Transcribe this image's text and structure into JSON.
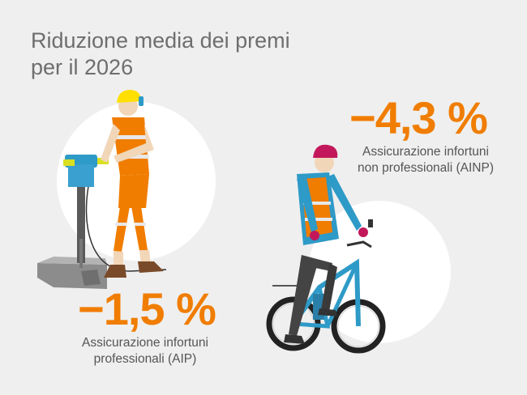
{
  "title": {
    "line1": "Riduzione media dei premi",
    "line2": "per il 2026"
  },
  "stats": {
    "ainp": {
      "value": "−4,3 %",
      "label_line1": "Assicurazione infortuni",
      "label_line2": "non professionali (AINP)"
    },
    "aip": {
      "value": "−1,5 %",
      "label_line1": "Assicurazione infortuni",
      "label_line2": "professionali (AIP)"
    }
  },
  "colors": {
    "accent": "#f07d00",
    "background": "#efefef",
    "title": "#6e6e6e",
    "label": "#555555"
  },
  "illustrations": {
    "worker": "construction-worker-jackhammer-icon",
    "cyclist": "cyclist-icon"
  }
}
